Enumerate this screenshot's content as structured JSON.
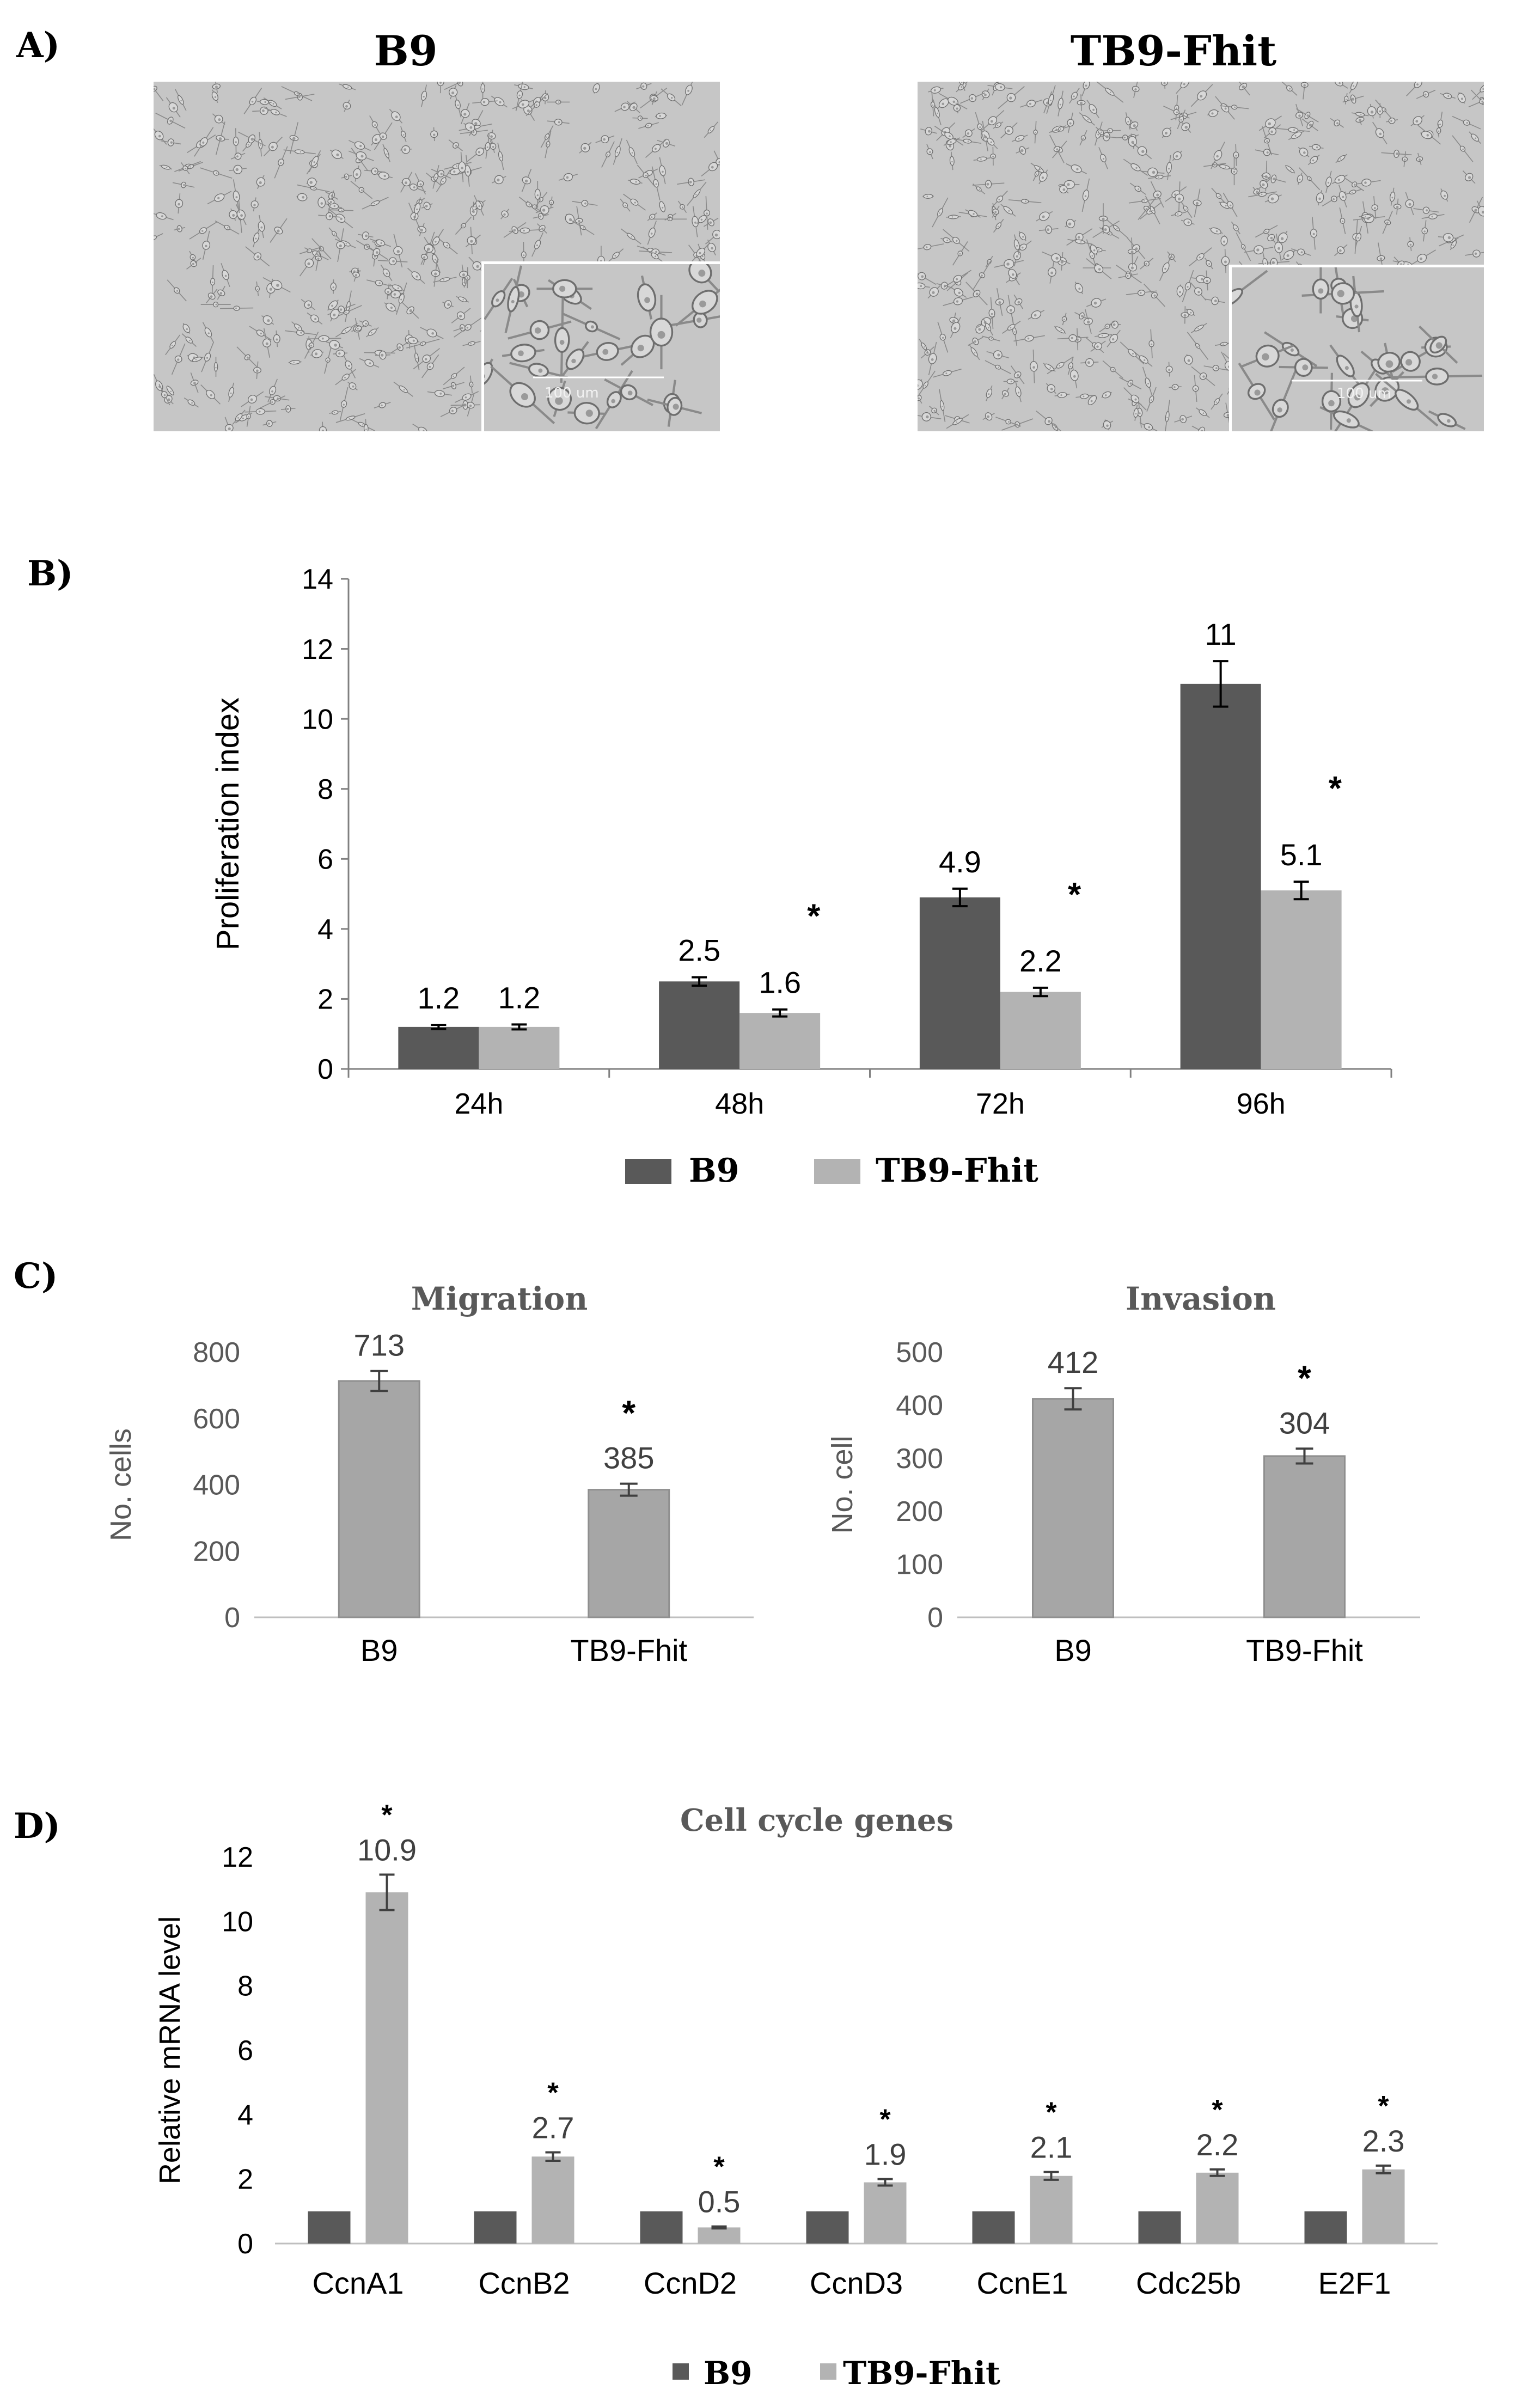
{
  "panel_labels": {
    "a": "A)",
    "b": "B)",
    "c": "C)",
    "d": "D)"
  },
  "colors": {
    "b9": "#595959",
    "tb9": "#b3b3b3",
    "single": "#a6a6a6",
    "axis": "#8c8c8c",
    "text": "#000000",
    "gray_text": "#595959"
  },
  "panel_a": {
    "left_title": "B9",
    "right_title": "TB9-Fhit",
    "scale_bar_label": "100 um"
  },
  "chart_data": [
    {
      "id": "B",
      "type": "bar",
      "title": "",
      "xlabel": "",
      "ylabel": "Proliferation index",
      "categories": [
        "24h",
        "48h",
        "72h",
        "96h"
      ],
      "series": [
        {
          "name": "B9",
          "values": [
            1.2,
            2.5,
            4.9,
            11
          ],
          "errors": [
            0.06,
            0.12,
            0.25,
            0.65
          ]
        },
        {
          "name": "TB9-Fhit",
          "values": [
            1.2,
            1.6,
            2.2,
            5.1
          ],
          "errors": [
            0.07,
            0.1,
            0.12,
            0.25
          ]
        }
      ],
      "labels": [
        [
          "1.2",
          "2.5",
          "4.9",
          "11"
        ],
        [
          "1.2",
          "1.6",
          "2.2",
          "5.1"
        ]
      ],
      "significance": [
        "",
        "*",
        "*",
        "*"
      ],
      "ylim": [
        0,
        14
      ],
      "yticks": [
        "0",
        "2",
        "4",
        "6",
        "8",
        "10",
        "12",
        "14"
      ],
      "legend": "bottom"
    },
    {
      "id": "C1",
      "type": "bar",
      "title": "Migration",
      "xlabel": "",
      "ylabel": "No. cells",
      "categories": [
        "B9",
        "TB9-Fhit"
      ],
      "values": [
        713,
        385
      ],
      "errors": [
        30,
        18
      ],
      "labels": [
        "713",
        "385"
      ],
      "significance": [
        "",
        "*"
      ],
      "ylim": [
        0,
        800
      ],
      "yticks": [
        "0",
        "200",
        "400",
        "600",
        "800"
      ]
    },
    {
      "id": "C2",
      "type": "bar",
      "title": "Invasion",
      "xlabel": "",
      "ylabel": "No. cell",
      "categories": [
        "B9",
        "TB9-Fhit"
      ],
      "values": [
        412,
        304
      ],
      "errors": [
        20,
        14
      ],
      "labels": [
        "412",
        "304"
      ],
      "significance": [
        "",
        "*"
      ],
      "ylim": [
        0,
        500
      ],
      "yticks": [
        "0",
        "100",
        "200",
        "300",
        "400",
        "500"
      ]
    },
    {
      "id": "D",
      "type": "bar",
      "title": "Cell cycle genes",
      "xlabel": "",
      "ylabel": "Relative mRNA level",
      "categories": [
        "CcnA1",
        "CcnB2",
        "CcnD2",
        "CcnD3",
        "CcnE1",
        "Cdc25b",
        "E2F1"
      ],
      "series": [
        {
          "name": "B9",
          "values": [
            1,
            1,
            1,
            1,
            1,
            1,
            1
          ],
          "errors": [
            0,
            0,
            0,
            0,
            0,
            0,
            0
          ]
        },
        {
          "name": "TB9-Fhit",
          "values": [
            10.9,
            2.7,
            0.5,
            1.9,
            2.1,
            2.2,
            2.3
          ],
          "errors": [
            0.55,
            0.13,
            0.03,
            0.1,
            0.12,
            0.1,
            0.12
          ]
        }
      ],
      "labels": [
        "10.9",
        "2.7",
        "0.5",
        "1.9",
        "2.1",
        "2.2",
        "2.3"
      ],
      "significance": [
        "*",
        "*",
        "*",
        "*",
        "*",
        "*",
        "*"
      ],
      "ylim": [
        0,
        12
      ],
      "yticks": [
        "0",
        "2",
        "4",
        "6",
        "8",
        "10",
        "12"
      ],
      "legend": "bottom"
    }
  ]
}
